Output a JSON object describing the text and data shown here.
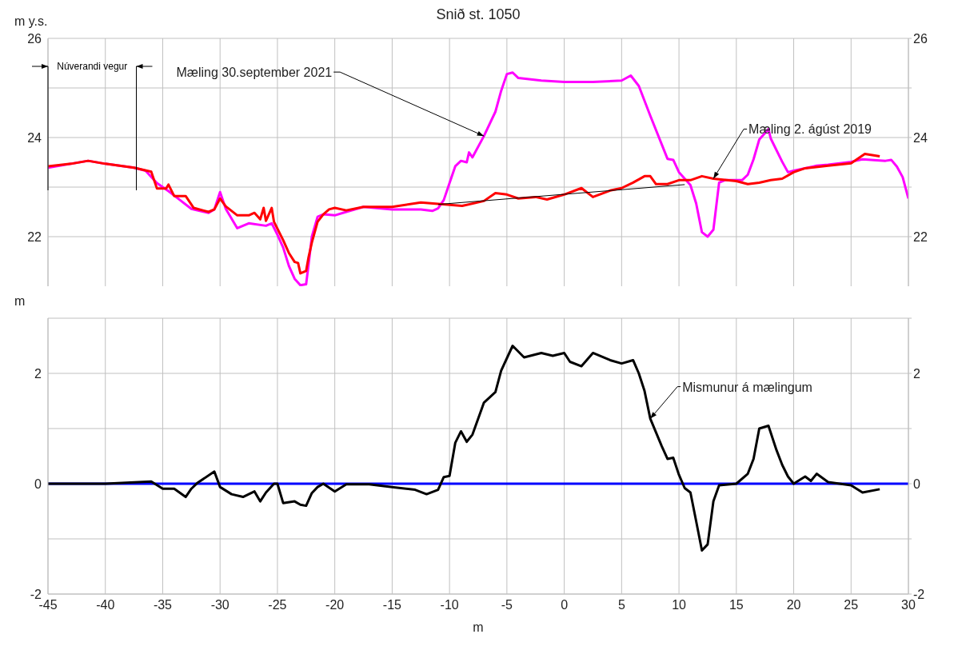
{
  "chart_data": [
    {
      "type": "line",
      "title": "Snið st. 1050",
      "ylabel": "m y.s.",
      "annotations": [
        "Núverandi vegur"
      ],
      "xlim": [
        -45,
        30
      ],
      "xticks": [
        -45,
        -40,
        -35,
        -30,
        -25,
        -20,
        -15,
        -10,
        -5,
        0,
        5,
        10,
        15,
        20,
        25,
        30
      ],
      "ylim": [
        21,
        26
      ],
      "yticks": [
        22,
        {
          "value": 23,
          "label": null
        },
        24,
        {
          "value": 25,
          "label": null
        },
        26
      ],
      "y2lim": [
        21,
        26
      ],
      "y2ticks": [
        22,
        {
          "value": 23,
          "label": null
        },
        24,
        {
          "value": 25,
          "label": null
        },
        26
      ],
      "tick_labels": "y",
      "grid": true,
      "series": [
        {
          "name": "Mæling 30.september 2021",
          "color": "#ff00ff",
          "x": [
            -45,
            -41.5,
            -40,
            -37.5,
            -36.5,
            -35.5,
            -34.5,
            -33.5,
            -32.5,
            -31,
            -30.5,
            -30,
            -29.5,
            -28.5,
            -27.5,
            -26,
            -25.5,
            -25,
            -24.5,
            -24,
            -23.5,
            -23,
            -22.5,
            -22.3,
            -22,
            -21.5,
            -21,
            -20,
            -19,
            -17.5,
            -15,
            -12.5,
            -11.5,
            -11,
            -10.5,
            -10,
            -9.5,
            -9,
            -8.5,
            -8.3,
            -8,
            -7,
            -6,
            -5.5,
            -5,
            -4.5,
            -4,
            -2,
            0,
            2.5,
            5,
            5.8,
            6.5,
            7.5,
            9,
            9.5,
            10,
            11,
            11.5,
            12,
            12.5,
            13,
            13.5,
            14,
            15.5,
            16,
            16.5,
            17,
            17.8,
            18,
            19,
            19.5,
            20,
            22,
            23,
            25,
            26,
            28,
            28.5,
            29,
            29.5,
            30
          ],
          "values": [
            23.39,
            23.53,
            23.47,
            23.39,
            23.33,
            23.08,
            22.92,
            22.74,
            22.56,
            22.48,
            22.55,
            22.9,
            22.56,
            22.17,
            22.27,
            22.22,
            22.27,
            22.04,
            21.78,
            21.41,
            21.15,
            21.02,
            21.04,
            21.41,
            22.0,
            22.4,
            22.45,
            22.43,
            22.5,
            22.6,
            22.55,
            22.55,
            22.52,
            22.57,
            22.74,
            23.08,
            23.42,
            23.53,
            23.5,
            23.7,
            23.6,
            24.03,
            24.52,
            24.94,
            25.28,
            25.31,
            25.2,
            25.15,
            25.12,
            25.12,
            25.15,
            25.25,
            25.04,
            24.44,
            23.57,
            23.55,
            23.3,
            23.04,
            22.67,
            22.09,
            22.0,
            22.14,
            23.09,
            23.14,
            23.14,
            23.25,
            23.56,
            23.96,
            24.17,
            23.98,
            23.51,
            23.3,
            23.33,
            23.43,
            23.45,
            23.51,
            23.56,
            23.53,
            23.55,
            23.41,
            23.2,
            22.77
          ]
        },
        {
          "name": "Mæling 2. ágúst 2019",
          "color": "#ff0000",
          "x": [
            -45,
            -43,
            -41.5,
            -40,
            -37.5,
            -36,
            -35.5,
            -34.7,
            -34.5,
            -34,
            -33,
            -32.3,
            -31,
            -30.5,
            -30,
            -29.5,
            -28.5,
            -27.5,
            -27,
            -26.5,
            -26.2,
            -26,
            -25.5,
            -25.3,
            -24.5,
            -24,
            -23.5,
            -23.2,
            -23,
            -22.5,
            -22.3,
            -22,
            -21.5,
            -21,
            -20.5,
            -20,
            -19,
            -17.5,
            -15,
            -12.5,
            -11,
            -8.9,
            -7,
            -6,
            -5,
            -4,
            -2.5,
            -1.5,
            0,
            1.5,
            2.5,
            4,
            5,
            6,
            7,
            7.5,
            8,
            9,
            10,
            11,
            12,
            13,
            15,
            16,
            17,
            18,
            19,
            20,
            21,
            23,
            25,
            26.2,
            27.5
          ],
          "values": [
            23.42,
            23.47,
            23.53,
            23.47,
            23.39,
            23.31,
            22.97,
            22.97,
            23.05,
            22.82,
            22.82,
            22.58,
            22.5,
            22.55,
            22.77,
            22.61,
            22.43,
            22.43,
            22.48,
            22.35,
            22.58,
            22.32,
            22.58,
            22.3,
            21.93,
            21.67,
            21.49,
            21.47,
            21.26,
            21.31,
            21.57,
            21.88,
            22.3,
            22.45,
            22.55,
            22.58,
            22.53,
            22.6,
            22.6,
            22.69,
            22.66,
            22.62,
            22.72,
            22.88,
            22.85,
            22.77,
            22.8,
            22.75,
            22.85,
            22.98,
            22.8,
            22.93,
            22.98,
            23.09,
            23.22,
            23.22,
            23.06,
            23.06,
            23.14,
            23.14,
            23.22,
            23.17,
            23.12,
            23.06,
            23.09,
            23.14,
            23.17,
            23.3,
            23.38,
            23.43,
            23.48,
            23.67,
            23.62
          ]
        },
        {
          "color": "#000000",
          "x": [
            -11,
            10.5
          ],
          "values": [
            22.65,
            23.05
          ]
        }
      ]
    },
    {
      "type": "line",
      "xlabel": "m",
      "ylabel": "m",
      "xlim": [
        -45,
        30
      ],
      "xticks": [
        -45,
        -40,
        -35,
        -30,
        -25,
        -20,
        -15,
        -10,
        -5,
        0,
        5,
        10,
        15,
        20,
        25,
        30
      ],
      "ylim": [
        -2,
        3
      ],
      "yticks": [
        -2,
        {
          "value": -1,
          "label": null
        },
        0,
        {
          "value": 1,
          "label": null
        },
        2,
        {
          "value": 3,
          "label": null
        }
      ],
      "y2lim": [
        -2,
        3
      ],
      "y2ticks": [
        -2,
        {
          "value": -1,
          "label": null
        },
        0,
        {
          "value": 1,
          "label": null
        },
        2,
        {
          "value": 3,
          "label": null
        }
      ],
      "grid": true,
      "ref_lines": [
        {
          "axis": "y",
          "value": 0,
          "color": "#0000ff"
        }
      ],
      "series": [
        {
          "name": "Mismunur á mælingum",
          "color": "#000000",
          "x": [
            -45,
            -40,
            -36,
            -35,
            -34,
            -33,
            -32.5,
            -32,
            -30.5,
            -30,
            -29,
            -28,
            -27,
            -26.5,
            -26,
            -25.3,
            -25,
            -24.5,
            -23.5,
            -23,
            -22.5,
            -22,
            -21.5,
            -21,
            -20,
            -19,
            -17,
            -15,
            -13,
            -12,
            -11,
            -10.5,
            -10,
            -9.5,
            -9,
            -8.5,
            -8,
            -7,
            -6,
            -5.5,
            -4.5,
            -3.5,
            -2,
            -1,
            0,
            0.5,
            1.5,
            2.5,
            4,
            5,
            6,
            6.5,
            7,
            7.5,
            8.5,
            9,
            9.5,
            10,
            10.5,
            11,
            11.5,
            12,
            12.5,
            13,
            13.5,
            15,
            16,
            16.5,
            17,
            17.8,
            18.5,
            19,
            19.5,
            20,
            21,
            21.5,
            22,
            23,
            25,
            26,
            27.5
          ],
          "values": [
            0,
            0,
            0.04,
            -0.09,
            -0.09,
            -0.24,
            -0.09,
            0.01,
            0.22,
            -0.06,
            -0.19,
            -0.24,
            -0.14,
            -0.32,
            -0.16,
            0,
            0,
            -0.35,
            -0.32,
            -0.38,
            -0.4,
            -0.17,
            -0.06,
            0,
            -0.14,
            -0.01,
            -0.01,
            -0.06,
            -0.11,
            -0.19,
            -0.11,
            0.12,
            0.14,
            0.74,
            0.95,
            0.76,
            0.89,
            1.47,
            1.66,
            2.05,
            2.5,
            2.29,
            2.37,
            2.32,
            2.37,
            2.21,
            2.13,
            2.37,
            2.24,
            2.18,
            2.24,
            2.0,
            1.68,
            1.18,
            0.68,
            0.45,
            0.47,
            0.16,
            -0.08,
            -0.16,
            -0.68,
            -1.21,
            -1.1,
            -0.32,
            -0.03,
            0,
            0.18,
            0.45,
            1.0,
            1.05,
            0.61,
            0.34,
            0.13,
            0,
            0.13,
            0.05,
            0.18,
            0.03,
            -0.03,
            -0.16,
            -0.1
          ]
        }
      ]
    }
  ]
}
